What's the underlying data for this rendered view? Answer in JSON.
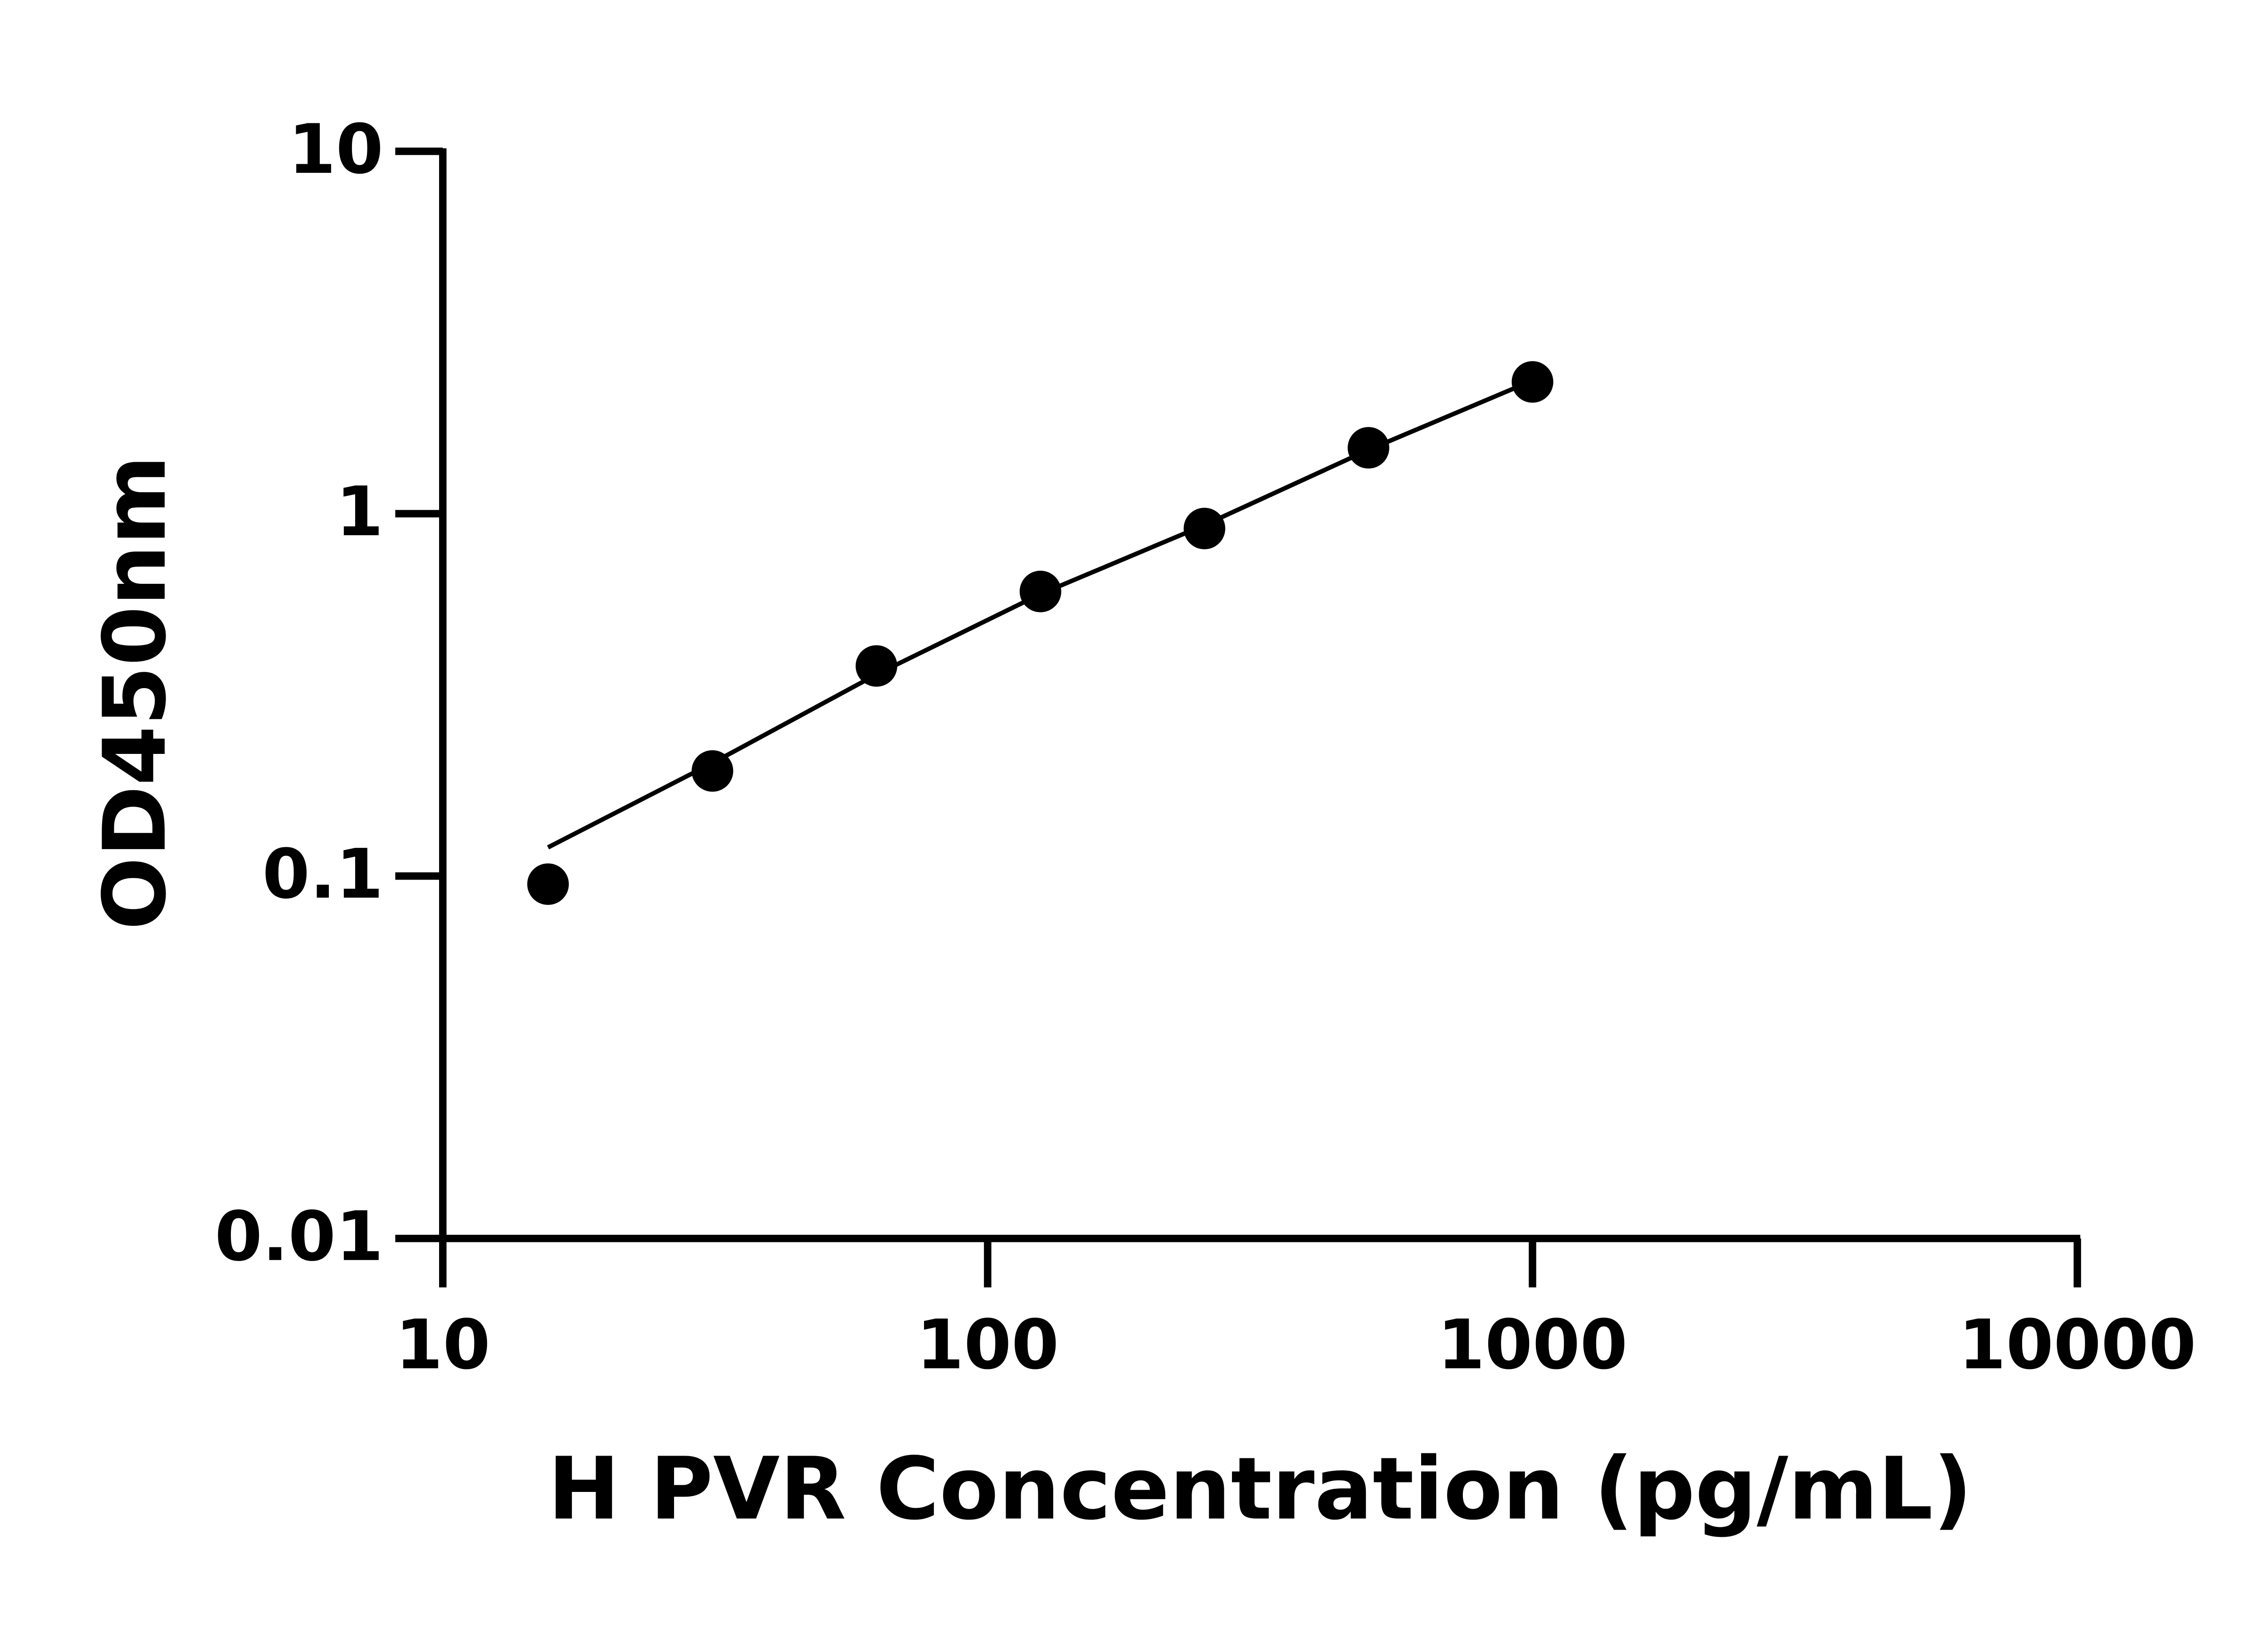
{
  "chart_data": {
    "type": "scatter",
    "x_label": "H PVR Concentration (pg/mL)",
    "y_label": "OD450nm",
    "x": [
      15.6,
      31.25,
      62.5,
      125,
      250,
      500,
      1000
    ],
    "values": [
      0.095,
      0.195,
      0.38,
      0.61,
      0.91,
      1.52,
      2.31
    ],
    "color": "#000000",
    "fit_line": {
      "x": [
        15.6,
        31.25,
        62.5,
        125,
        250,
        500,
        927
      ],
      "values": [
        0.12,
        0.205,
        0.36,
        0.6,
        0.93,
        1.5,
        2.22
      ]
    },
    "log_x": true,
    "log_y": true,
    "xlim": [
      10,
      10000
    ],
    "ylim": [
      0.01,
      10
    ],
    "xticks": [
      10,
      100,
      1000,
      10000
    ],
    "yticks": [
      0.01,
      0.1,
      1,
      10
    ]
  }
}
